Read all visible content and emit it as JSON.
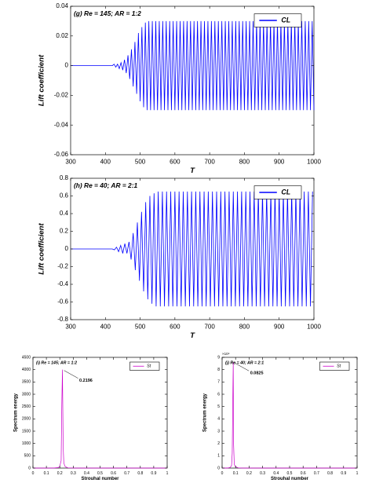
{
  "chart_data": [
    {
      "type": "line",
      "title": "(g) Re = 145; AR = 1:2",
      "xlabel": "T",
      "ylabel": "Lift coefficient",
      "x": [
        300,
        305,
        310,
        315,
        320,
        325,
        330,
        335,
        340,
        345,
        350,
        355,
        360,
        365,
        370,
        375,
        380,
        385,
        390,
        395,
        400,
        405,
        410,
        415,
        420,
        425,
        430,
        435,
        440,
        445,
        450,
        455,
        460,
        465,
        470,
        475,
        480,
        485,
        490,
        495,
        500,
        505,
        510,
        515,
        520,
        525,
        530,
        535,
        540,
        545,
        550,
        555,
        560,
        565,
        570,
        575,
        580,
        585,
        590,
        595,
        600,
        605,
        610,
        615,
        620,
        625,
        630,
        635,
        640,
        645,
        650,
        655,
        660,
        665,
        670,
        675,
        680,
        685,
        690,
        695,
        700,
        705,
        710,
        715,
        720,
        725,
        730,
        735,
        740,
        745,
        750,
        755,
        760,
        765,
        770,
        775,
        780,
        785,
        790,
        795,
        800,
        805,
        810,
        815,
        820,
        825,
        830,
        835,
        840,
        845,
        850,
        855,
        860,
        865,
        870,
        875,
        880,
        885,
        890,
        895,
        900,
        905,
        910,
        915,
        920,
        925,
        930,
        935,
        940,
        945,
        950,
        955,
        960,
        965,
        970,
        975,
        980,
        985,
        990,
        995,
        1000
      ],
      "series": [
        {
          "name": "CL",
          "color": "#0000ff",
          "values": [
            0,
            0,
            0,
            0,
            0,
            0,
            0,
            0,
            0,
            0,
            0,
            0,
            0,
            0,
            0,
            0,
            0,
            0,
            0,
            0,
            0,
            0,
            0,
            0,
            0,
            0.001,
            -0.001,
            0.001,
            -0.002,
            0.002,
            -0.003,
            0.004,
            -0.005,
            0.007,
            -0.009,
            0.011,
            -0.014,
            0.016,
            -0.019,
            0.022,
            -0.024,
            0.026,
            -0.028,
            0.029,
            -0.03,
            0.03,
            -0.03,
            0.03,
            -0.03,
            0.03,
            -0.03,
            0.03,
            -0.03,
            0.03,
            -0.03,
            0.03,
            -0.03,
            0.03,
            -0.03,
            0.03,
            -0.03,
            0.03,
            -0.03,
            0.03,
            -0.03,
            0.03,
            -0.03,
            0.03,
            -0.03,
            0.03,
            -0.03,
            0.03,
            -0.03,
            0.03,
            -0.03,
            0.03,
            -0.03,
            0.03,
            -0.03,
            0.03,
            -0.03,
            0.03,
            -0.03,
            0.03,
            -0.03,
            0.03,
            -0.03,
            0.03,
            -0.03,
            0.03,
            -0.03,
            0.03,
            -0.03,
            0.03,
            -0.03,
            0.03,
            -0.03,
            0.03,
            -0.03,
            0.03,
            -0.03,
            0.03,
            -0.03,
            0.03,
            -0.03,
            0.03,
            -0.03,
            0.03,
            -0.03,
            0.03,
            -0.03,
            0.03,
            -0.03,
            0.03,
            -0.03,
            0.03,
            -0.03,
            0.03,
            -0.03,
            0.03,
            -0.03,
            0.03,
            -0.03,
            0.03,
            -0.03,
            0.03,
            -0.03,
            0.03,
            -0.03,
            0.03,
            -0.03,
            0.03,
            -0.03,
            0.03,
            -0.03,
            0.03,
            -0.03,
            0.03,
            -0.03,
            0.03,
            -0.03
          ]
        }
      ],
      "xlim": [
        300,
        1000
      ],
      "xticks": [
        300,
        400,
        500,
        600,
        700,
        800,
        900,
        1000
      ],
      "ylim": [
        -0.06,
        0.04
      ],
      "yticks": [
        -0.06,
        -0.04,
        -0.02,
        0,
        0.02,
        0.04
      ],
      "legend": "upper right"
    },
    {
      "type": "line",
      "title": "(h) Re = 40; AR = 2:1",
      "xlabel": "T",
      "ylabel": "Lift coefficient",
      "x": [
        300,
        306,
        312,
        318,
        324,
        330,
        336,
        342,
        348,
        354,
        360,
        366,
        372,
        378,
        384,
        390,
        396,
        402,
        408,
        414,
        420,
        426,
        432,
        438,
        444,
        450,
        456,
        462,
        468,
        474,
        480,
        486,
        492,
        498,
        504,
        510,
        516,
        522,
        528,
        534,
        540,
        546,
        552,
        558,
        564,
        570,
        576,
        582,
        588,
        594,
        600,
        606,
        612,
        618,
        624,
        630,
        636,
        642,
        648,
        654,
        660,
        666,
        672,
        678,
        684,
        690,
        696,
        702,
        708,
        714,
        720,
        726,
        732,
        738,
        744,
        750,
        756,
        762,
        768,
        774,
        780,
        786,
        792,
        798,
        804,
        810,
        816,
        822,
        828,
        834,
        840,
        846,
        852,
        858,
        864,
        870,
        876,
        882,
        888,
        894,
        900,
        906,
        912,
        918,
        924,
        930,
        936,
        942,
        948,
        954,
        960,
        966,
        972,
        978,
        984,
        990,
        996
      ],
      "series": [
        {
          "name": "CL",
          "color": "#0000ff",
          "values": [
            0,
            0,
            0,
            0,
            0,
            0,
            0,
            0,
            0,
            0,
            0,
            0,
            0,
            0,
            0,
            0,
            0,
            0,
            0,
            0,
            0,
            -0.01,
            0.02,
            -0.03,
            0.04,
            -0.05,
            0.06,
            -0.05,
            0.08,
            -0.12,
            0.18,
            -0.24,
            0.3,
            -0.36,
            0.42,
            -0.48,
            0.53,
            -0.57,
            0.6,
            -0.62,
            0.63,
            -0.65,
            0.65,
            -0.65,
            0.65,
            -0.65,
            0.65,
            -0.65,
            0.65,
            -0.65,
            0.65,
            -0.65,
            0.65,
            -0.65,
            0.65,
            -0.65,
            0.65,
            -0.65,
            0.65,
            -0.65,
            0.65,
            -0.65,
            0.65,
            -0.65,
            0.65,
            -0.65,
            0.65,
            -0.65,
            0.65,
            -0.65,
            0.65,
            -0.65,
            0.65,
            -0.65,
            0.65,
            -0.65,
            0.65,
            -0.65,
            0.65,
            -0.65,
            0.65,
            -0.65,
            0.65,
            -0.65,
            0.65,
            -0.65,
            0.65,
            -0.65,
            0.65,
            -0.65,
            0.65,
            -0.65,
            0.65,
            -0.65,
            0.65,
            -0.65,
            0.65,
            -0.65,
            0.65,
            -0.65,
            0.65,
            -0.65,
            0.65,
            -0.65,
            0.65,
            -0.65,
            0.65,
            -0.65,
            0.65,
            -0.65,
            0.65,
            -0.65,
            0.65,
            -0.65,
            0.65,
            -0.65,
            0.65
          ]
        }
      ],
      "xlim": [
        300,
        1000
      ],
      "xticks": [
        300,
        400,
        500,
        600,
        700,
        800,
        900,
        1000
      ],
      "ylim": [
        -0.8,
        0.8
      ],
      "yticks": [
        -0.8,
        -0.6,
        -0.4,
        -0.2,
        0,
        0.2,
        0.4,
        0.6,
        0.8
      ],
      "legend": "upper right"
    },
    {
      "type": "line",
      "title": "(i) Re = 145; AR = 1:2",
      "xlabel": "Strouhal number",
      "ylabel": "Spectrum energy",
      "annotation": "0.2196",
      "x": [
        0,
        0.05,
        0.1,
        0.15,
        0.19,
        0.2,
        0.21,
        0.215,
        0.2196,
        0.225,
        0.23,
        0.24,
        0.26,
        0.3,
        0.4,
        0.5,
        0.6,
        0.7,
        0.8,
        0.9,
        1
      ],
      "series": [
        {
          "name": "St",
          "color": "#cc00cc",
          "values": [
            0,
            0,
            0,
            0,
            20,
            80,
            300,
            2600,
            4000,
            900,
            200,
            60,
            10,
            0,
            0,
            0,
            0,
            0,
            0,
            0,
            0
          ]
        }
      ],
      "xlim": [
        0,
        1
      ],
      "xticks": [
        0,
        0.1,
        0.2,
        0.3,
        0.4,
        0.5,
        0.6,
        0.7,
        0.8,
        0.9,
        1
      ],
      "ylim": [
        0,
        4500
      ],
      "yticks": [
        0,
        500,
        1000,
        1500,
        2000,
        2500,
        3000,
        3500,
        4000,
        4500
      ],
      "legend": "upper right"
    },
    {
      "type": "line",
      "title": "(j) Re = 40; AR = 2:1",
      "xlabel": "Strouhal number",
      "ylabel": "Spectrum energy",
      "annotation": "0.0825",
      "y_multiplier": "×10⁴",
      "x": [
        0,
        0.04,
        0.06,
        0.07,
        0.075,
        0.08,
        0.0825,
        0.085,
        0.09,
        0.1,
        0.12,
        0.15,
        0.2,
        0.3,
        0.4,
        0.5,
        0.6,
        0.7,
        0.8,
        0.9,
        1
      ],
      "series": [
        {
          "name": "St",
          "color": "#cc00cc",
          "values": [
            0,
            0,
            0.05,
            0.2,
            1.2,
            6.4,
            8.6,
            2,
            0.3,
            0.1,
            0.02,
            0,
            0,
            0,
            0,
            0,
            0,
            0,
            0,
            0,
            0
          ]
        }
      ],
      "xlim": [
        0,
        1
      ],
      "xticks": [
        0,
        0.1,
        0.2,
        0.3,
        0.4,
        0.5,
        0.6,
        0.7,
        0.8,
        0.9,
        1
      ],
      "ylim": [
        0,
        9
      ],
      "yticks": [
        0,
        1,
        2,
        3,
        4,
        5,
        6,
        7,
        8,
        9
      ],
      "legend": "upper right"
    }
  ]
}
